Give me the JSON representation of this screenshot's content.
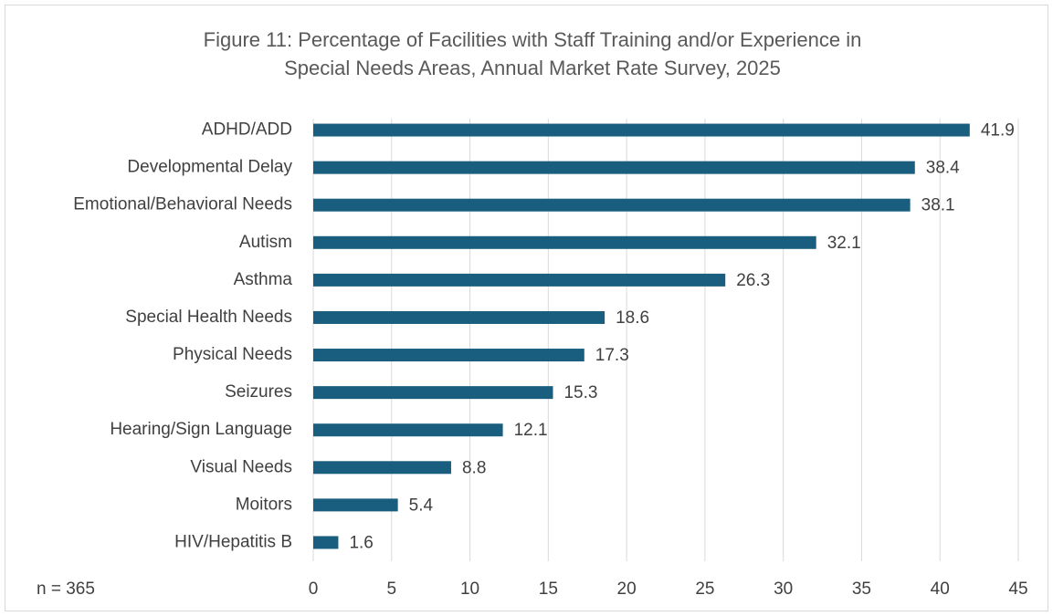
{
  "chart_data": {
    "type": "barh",
    "title": [
      "Figure 11: Percentage of Facilities with Staff Training and/or Experience in",
      "Special Needs Areas, Annual Market Rate Survey, 2025"
    ],
    "annotation": "n = 365",
    "categories": [
      "ADHD/ADD",
      "Developmental Delay",
      "Emotional/Behavioral Needs",
      "Autism",
      "Asthma",
      "Special Health Needs",
      "Physical Needs",
      "Seizures",
      "Hearing/Sign Language",
      "Visual Needs",
      "Moitors",
      "HIV/Hepatitis B"
    ],
    "values": [
      41.9,
      38.4,
      38.1,
      32.1,
      26.3,
      18.6,
      17.3,
      15.3,
      12.1,
      8.8,
      5.4,
      1.6
    ],
    "color": "#195e7e",
    "xlim": [
      0,
      45
    ],
    "xticks": [
      0,
      5,
      10,
      15,
      20,
      25,
      30,
      35,
      40,
      45
    ],
    "grid": true
  }
}
